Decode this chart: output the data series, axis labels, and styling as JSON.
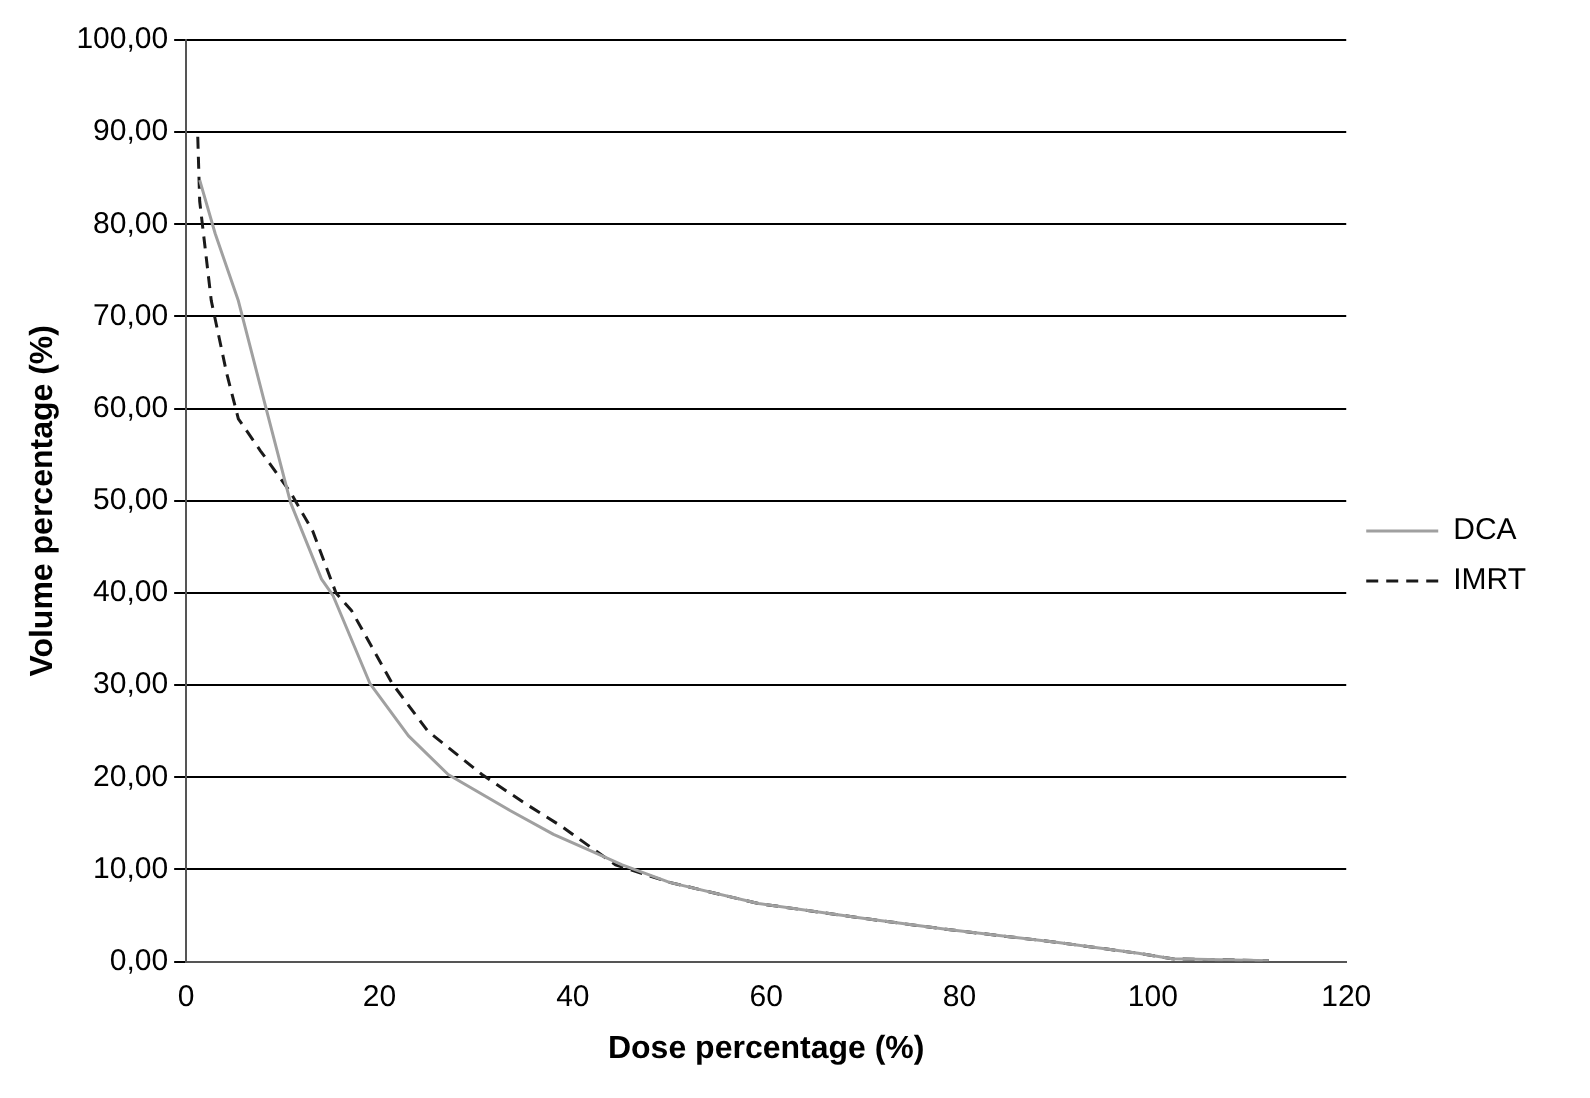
{
  "chart_data": {
    "type": "line",
    "xlabel": "Dose percentage (%)",
    "ylabel": "Volume percentage (%)",
    "xlim": [
      0,
      120
    ],
    "xticks": [
      0,
      20,
      40,
      60,
      80,
      100,
      120
    ],
    "ylim": [
      0,
      100
    ],
    "yticks": [
      {
        "value": 0,
        "label": "0,00"
      },
      {
        "value": 10,
        "label": "10,00"
      },
      {
        "value": 20,
        "label": "20,00"
      },
      {
        "value": 30,
        "label": "30,00"
      },
      {
        "value": 40,
        "label": "40,00"
      },
      {
        "value": 50,
        "label": "50,00"
      },
      {
        "value": 60,
        "label": "60,00"
      },
      {
        "value": 70,
        "label": "70,00"
      },
      {
        "value": 80,
        "label": "80,00"
      },
      {
        "value": 90,
        "label": "90,00"
      },
      {
        "value": 100,
        "label": "100,00"
      }
    ],
    "grid": "y",
    "legend": "right",
    "marker": "none",
    "series": [
      {
        "name": "DCA",
        "color": "#a0a0a0",
        "line_style": "solid",
        "x": [
          1.4,
          3,
          5.4,
          8.2,
          10.8,
          14,
          15.2,
          19,
          23,
          27.1,
          33.5,
          38,
          42.1,
          45.1,
          50,
          59.2,
          70,
          78.6,
          90,
          98.5,
          102,
          112
        ],
        "values": [
          84.8,
          79,
          71.7,
          60.3,
          49.8,
          41.5,
          39.7,
          30.2,
          24.5,
          20.3,
          16.4,
          13.8,
          11.9,
          10.5,
          8.6,
          6.3,
          4.7,
          3.5,
          2.1,
          0.9,
          0.3,
          0.1
        ]
      },
      {
        "name": "IMRT",
        "color": "#1a1a1a",
        "line_style": "dashed",
        "x": [
          1.2,
          1.4,
          2.6,
          4.2,
          5.4,
          7.7,
          10.8,
          13.1,
          15.5,
          17.1,
          21.3,
          25,
          30.6,
          35,
          38.8,
          44.4,
          50,
          59.2,
          70,
          78.6,
          90,
          98.5,
          102,
          112
        ],
        "values": [
          89.5,
          82.5,
          71.7,
          63.8,
          58.9,
          55.4,
          50.9,
          46.7,
          40,
          38.1,
          30.2,
          25,
          20.3,
          17.2,
          14.7,
          10.5,
          8.6,
          6.3,
          4.7,
          3.5,
          2.1,
          0.9,
          0.3,
          0.1
        ]
      }
    ]
  }
}
